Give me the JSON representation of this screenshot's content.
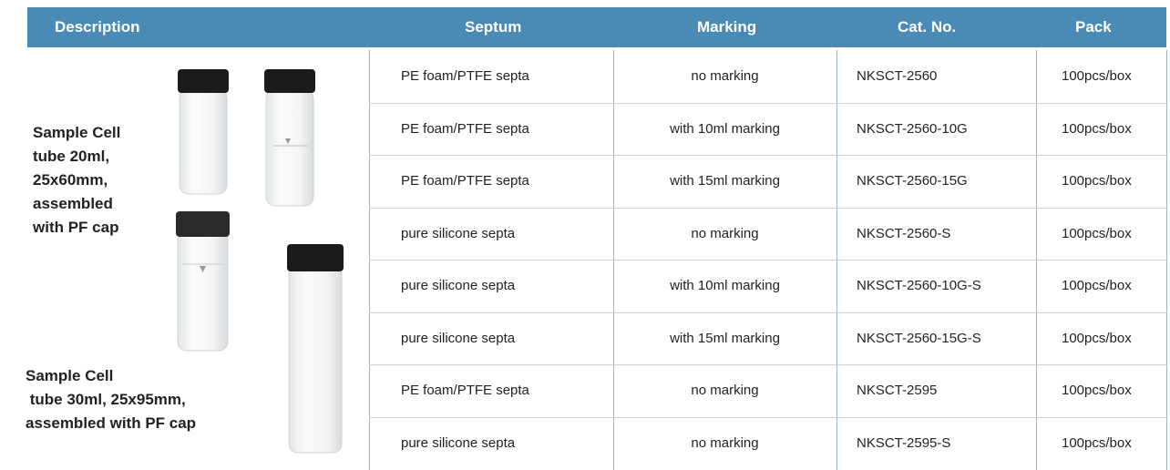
{
  "header": {
    "columns": [
      "Description",
      "Septum",
      "Marking",
      "Cat. No.",
      "Pack"
    ]
  },
  "description": [
    {
      "lines": [
        "Sample Cell",
        "tube 20ml,",
        "25x60mm,",
        "assembled",
        "with PF cap"
      ]
    },
    {
      "lines": [
        "Sample Cell",
        " tube 30ml, 25x95mm,",
        "assembled with PF cap"
      ]
    }
  ],
  "table": {
    "rows": [
      [
        "PE foam/PTFE septa",
        "no marking",
        "NKSCT-2560",
        "100pcs/box"
      ],
      [
        "PE foam/PTFE septa",
        "with 10ml marking",
        "NKSCT-2560-10G",
        "100pcs/box"
      ],
      [
        "PE foam/PTFE septa",
        "with 15ml marking",
        "NKSCT-2560-15G",
        "100pcs/box"
      ],
      [
        "pure silicone septa",
        "no marking",
        "NKSCT-2560-S",
        "100pcs/box"
      ],
      [
        "pure silicone septa",
        "with 10ml marking",
        "NKSCT-2560-10G-S",
        "100pcs/box"
      ],
      [
        "pure silicone septa",
        "with 15ml marking",
        "NKSCT-2560-15G-S",
        "100pcs/box"
      ],
      [
        "PE foam/PTFE septa",
        "no marking",
        "NKSCT-2595",
        "100pcs/box"
      ],
      [
        "pure silicone septa",
        "no marking",
        "NKSCT-2595-S",
        "100pcs/box"
      ]
    ]
  }
}
